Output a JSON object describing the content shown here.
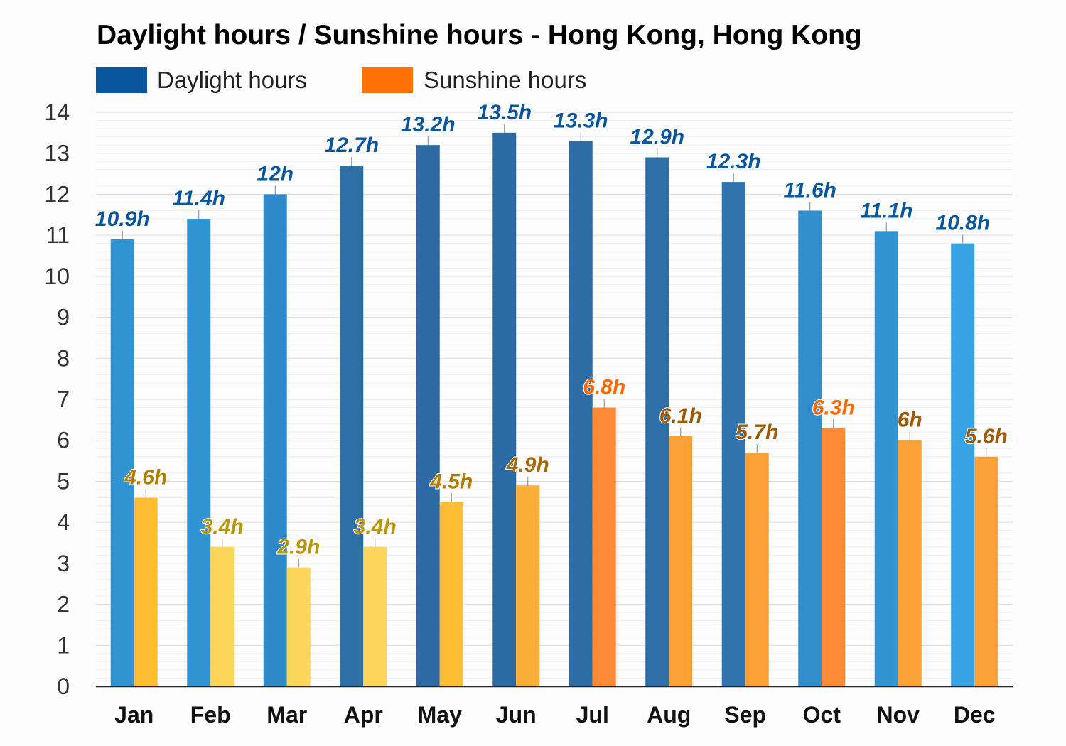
{
  "chart_data": {
    "type": "bar",
    "title": "Daylight hours / Sunshine hours - Hong Kong, Hong Kong",
    "xlabel": "",
    "ylabel": "",
    "ylim": [
      0,
      14
    ],
    "yticks": [
      0,
      1,
      2,
      3,
      4,
      5,
      6,
      7,
      8,
      9,
      10,
      11,
      12,
      13,
      14
    ],
    "grid": true,
    "legend_position": "top-left",
    "categories": [
      "Jan",
      "Feb",
      "Mar",
      "Apr",
      "May",
      "Jun",
      "Jul",
      "Aug",
      "Sep",
      "Oct",
      "Nov",
      "Dec"
    ],
    "series": [
      {
        "name": "Daylight hours",
        "legend_color": "#0a569e",
        "label_color": "#0a569e",
        "values": [
          10.9,
          11.4,
          12,
          12.7,
          13.2,
          13.5,
          13.3,
          12.9,
          12.3,
          11.6,
          11.1,
          10.8
        ],
        "labels": [
          "10.9h",
          "11.4h",
          "12h",
          "12.7h",
          "13.2h",
          "13.5h",
          "13.3h",
          "12.9h",
          "12.3h",
          "11.6h",
          "11.1h",
          "10.8h"
        ],
        "bar_colors": [
          "#3194d2",
          "#3194d2",
          "#2f89c9",
          "#2e6fa6",
          "#2d6aa3",
          "#2c6aa3",
          "#2d6ca5",
          "#2d6fa6",
          "#2f74ad",
          "#318ecb",
          "#3194d2",
          "#36a2e1"
        ]
      },
      {
        "name": "Sunshine hours",
        "legend_color": "#ff7006",
        "values": [
          4.6,
          3.4,
          2.9,
          3.4,
          4.5,
          4.9,
          6.8,
          6.1,
          5.7,
          6.3,
          6.0,
          5.6
        ],
        "labels": [
          "4.6h",
          "3.4h",
          "2.9h",
          "3.4h",
          "4.5h",
          "4.9h",
          "6.8h",
          "6.1h",
          "5.7h",
          "6.3h",
          "6h",
          "5.6h"
        ],
        "bar_colors": [
          "#fdbe33",
          "#fcd65a",
          "#fcd65a",
          "#fcd65a",
          "#fdbe33",
          "#fcaf38",
          "#fd8a35",
          "#fba136",
          "#fba136",
          "#fd8b35",
          "#fba136",
          "#fba136"
        ],
        "label_colors": [
          "#b07d00",
          "#b8960f",
          "#b8960f",
          "#b8960f",
          "#b07d00",
          "#a86a06",
          "#ff6a00",
          "#9e5b06",
          "#9e5b06",
          "#ff6a00",
          "#9e5b06",
          "#9e5b06"
        ]
      }
    ]
  }
}
